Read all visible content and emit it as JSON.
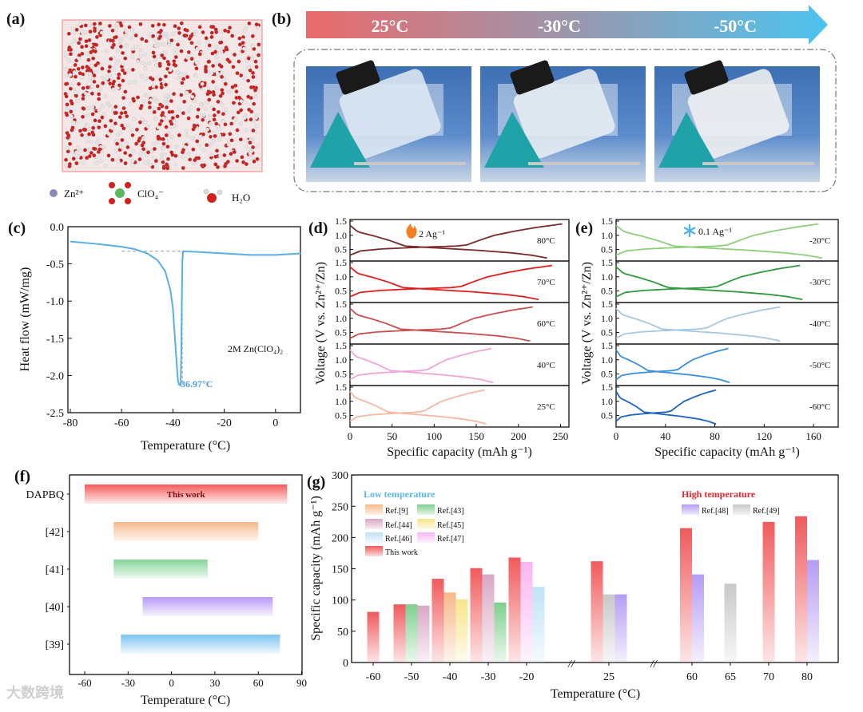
{
  "panel_labels": {
    "a": "(a)",
    "b": "(b)",
    "c": "(c)",
    "d": "(d)",
    "e": "(e)",
    "f": "(f)",
    "g": "(g)"
  },
  "panel_a": {
    "legend": [
      "Zn²⁺",
      "ClO₄⁻",
      "H₂O"
    ]
  },
  "panel_b": {
    "arrow_labels": [
      "25°C",
      "-30°C",
      "-50°C"
    ],
    "colors": {
      "start": "#ea6a6a",
      "end": "#4cc3ef"
    }
  },
  "watermark": "大数跨境",
  "chart_data": [
    {
      "id": "c",
      "type": "line",
      "xlabel": "Temperature (°C)",
      "ylabel": "Heat flow (mW/mg)",
      "xlim": [
        -80,
        10
      ],
      "ylim": [
        -2.5,
        0
      ],
      "xticks": [
        -80,
        -60,
        -40,
        -20,
        0
      ],
      "yticks": [
        0.0,
        -0.5,
        -1.0,
        -1.5,
        -2.0,
        -2.5
      ],
      "series": [
        {
          "name": "2M Zn(ClO4)2",
          "color": "#5aaee8",
          "x": [
            -80,
            -70,
            -60,
            -55,
            -50,
            -46,
            -43,
            -41,
            -40,
            -39.5,
            -39,
            -38.5,
            -38.2,
            -38,
            -37.5,
            -37,
            -36.97,
            -36.7,
            -36.5,
            -36.3,
            -36,
            -30,
            -20,
            -10,
            0,
            10
          ],
          "y": [
            -0.2,
            -0.23,
            -0.27,
            -0.3,
            -0.36,
            -0.45,
            -0.6,
            -0.85,
            -1.1,
            -1.35,
            -1.6,
            -1.85,
            -2.0,
            -2.08,
            -2.12,
            -2.13,
            -2.13,
            -1.6,
            -0.9,
            -0.45,
            -0.33,
            -0.34,
            -0.36,
            -0.38,
            -0.38,
            -0.36
          ]
        }
      ],
      "annotations": [
        {
          "text": "2M Zn(ClO₄)₂"
        },
        {
          "text": "-36.97°C",
          "x": -36.97,
          "y": -2.13
        }
      ],
      "baseline_y": -0.33
    },
    {
      "id": "d",
      "type": "line",
      "xlabel": "Specific capacity (mAh g⁻¹)",
      "ylabel": "Voltage (V vs. Zn²⁺/Zn)",
      "xlim": [
        0,
        260
      ],
      "ylim": [
        0.15,
        1.5
      ],
      "xticks": [
        0,
        50,
        100,
        150,
        200,
        250
      ],
      "yticks": [
        0.5,
        1.0,
        1.5
      ],
      "rate_label": "2 Ag⁻¹",
      "rate_icon": "flame",
      "panels": [
        {
          "label": "80°C",
          "charge": 252,
          "discharge": 234,
          "color": "#7a2a2a"
        },
        {
          "label": "70°C",
          "charge": 240,
          "discharge": 224,
          "color": "#e01f1f"
        },
        {
          "label": "60°C",
          "charge": 217,
          "discharge": 214,
          "color": "#c8504f"
        },
        {
          "label": "40°C",
          "charge": 168,
          "discharge": 170,
          "color": "#f0a6d6"
        },
        {
          "label": "25°C",
          "charge": 160,
          "discharge": 162,
          "color": "#f5b9a3"
        }
      ]
    },
    {
      "id": "e",
      "type": "line",
      "xlabel": "Specific capacity (mAh g⁻¹)",
      "ylabel": "Voltage (V vs. Zn²⁺/Zn)",
      "xlim": [
        0,
        180
      ],
      "ylim": [
        0.15,
        1.5
      ],
      "xticks": [
        0,
        40,
        80,
        120,
        160
      ],
      "yticks": [
        0.5,
        1.0,
        1.5
      ],
      "rate_label": "0.1 Ag⁻¹",
      "rate_icon": "snowflake",
      "panels": [
        {
          "label": "-20°C",
          "charge": 164,
          "discharge": 167,
          "color": "#8fcf7a"
        },
        {
          "label": "-30°C",
          "charge": 149,
          "discharge": 151,
          "color": "#2e9a3c"
        },
        {
          "label": "-40°C",
          "charge": 133,
          "discharge": 133,
          "color": "#a6c8e3"
        },
        {
          "label": "-50°C",
          "charge": 91,
          "discharge": 92,
          "color": "#3a8fdc"
        },
        {
          "label": "-60°C",
          "charge": 81,
          "discharge": 81,
          "color": "#1c63c4"
        }
      ]
    },
    {
      "id": "f",
      "type": "bar",
      "xlabel": "Temperature (°C)",
      "xlim": [
        -70,
        90
      ],
      "xticks": [
        -60,
        -30,
        0,
        30,
        60,
        90
      ],
      "bars": [
        {
          "label": "DAPBQ",
          "start": -60,
          "end": 80,
          "color": "#f35a5a",
          "text": "This work"
        },
        {
          "label": "[42]",
          "start": -40,
          "end": 60,
          "color": "#f6b98a"
        },
        {
          "label": "[41]",
          "start": -40,
          "end": 25,
          "color": "#86d39a"
        },
        {
          "label": "[40]",
          "start": -20,
          "end": 70,
          "color": "#b99af6"
        },
        {
          "label": "[39]",
          "start": -35,
          "end": 75,
          "color": "#7cc4f0"
        }
      ]
    },
    {
      "id": "g",
      "type": "bar",
      "xlabel": "Temperature (°C)",
      "ylabel": "Specific capacity (mAh g⁻¹)",
      "ylim": [
        0,
        300
      ],
      "yticks": [
        0,
        50,
        100,
        150,
        200,
        250,
        300
      ],
      "categories": [
        "-60",
        "-50",
        "-40",
        "-30",
        "-20",
        "25",
        "60",
        "65",
        "70",
        "80"
      ],
      "group_titles": {
        "low": "Low temperature",
        "high": "High temperature"
      },
      "legend": [
        {
          "name": "Ref.[9]",
          "color": "#f6b98a"
        },
        {
          "name": "Ref.[43]",
          "color": "#7fcf8e"
        },
        {
          "name": "Ref.[44]",
          "color": "#d9a8c4"
        },
        {
          "name": "Ref.[45]",
          "color": "#f7e58a"
        },
        {
          "name": "Ref.[46]",
          "color": "#bfe2f7"
        },
        {
          "name": "Ref.[47]",
          "color": "#f8b6f0"
        },
        {
          "name": "This work",
          "color": "#f05a5c"
        },
        {
          "name": "Ref.[48]",
          "color": "#b59cf5"
        },
        {
          "name": "Ref.[49]",
          "color": "#c8c8c8"
        }
      ],
      "groups": [
        [
          {
            "series": "This work",
            "value": 81
          }
        ],
        [
          {
            "series": "This work",
            "value": 93
          },
          {
            "series": "Ref.[43]",
            "value": 93
          },
          {
            "series": "Ref.[44]",
            "value": 91
          }
        ],
        [
          {
            "series": "This work",
            "value": 134
          },
          {
            "series": "Ref.[9]",
            "value": 112
          },
          {
            "series": "Ref.[45]",
            "value": 101
          }
        ],
        [
          {
            "series": "This work",
            "value": 151
          },
          {
            "series": "Ref.[44]",
            "value": 141
          },
          {
            "series": "Ref.[43]",
            "value": 96
          }
        ],
        [
          {
            "series": "This work",
            "value": 168
          },
          {
            "series": "Ref.[47]",
            "value": 161
          },
          {
            "series": "Ref.[46]",
            "value": 121
          }
        ],
        [
          {
            "series": "This work",
            "value": 162
          },
          {
            "series": "Ref.[49]",
            "value": 109
          },
          {
            "series": "Ref.[48]",
            "value": 109
          }
        ],
        [
          {
            "series": "This work",
            "value": 215
          },
          {
            "series": "Ref.[48]",
            "value": 141
          }
        ],
        [
          {
            "series": "Ref.[49]",
            "value": 126
          }
        ],
        [
          {
            "series": "This work",
            "value": 225
          }
        ],
        [
          {
            "series": "This work",
            "value": 234
          },
          {
            "series": "Ref.[48]",
            "value": 164
          }
        ]
      ]
    }
  ]
}
